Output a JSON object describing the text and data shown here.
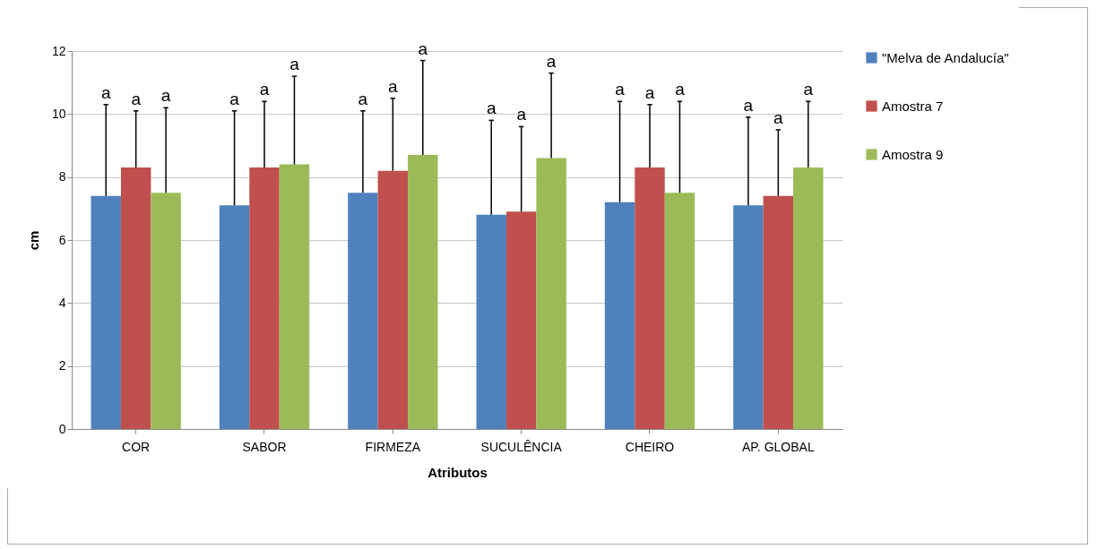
{
  "chart_data": {
    "type": "bar",
    "xlabel": "Atributos",
    "ylabel": "cm",
    "categories": [
      "COR",
      "SABOR",
      "FIRMEZA",
      "SUCULÊNCIA",
      "CHEIRO",
      "AP. GLOBAL"
    ],
    "series": [
      {
        "name": "\"Melva de Andalucía\"",
        "color": "#4f81bd",
        "values": [
          7.4,
          7.1,
          7.5,
          6.8,
          7.2,
          7.1
        ],
        "errors": [
          [
            7.4,
            10.3
          ],
          [
            7.1,
            10.1
          ],
          [
            7.5,
            10.1
          ],
          [
            6.8,
            9.8
          ],
          [
            7.2,
            10.4
          ],
          [
            7.1,
            9.9
          ]
        ]
      },
      {
        "name": "Amostra 7",
        "color": "#c0504d",
        "values": [
          8.3,
          8.3,
          8.2,
          6.9,
          8.3,
          7.4
        ],
        "errors": [
          [
            8.3,
            10.1
          ],
          [
            8.3,
            10.4
          ],
          [
            8.2,
            10.5
          ],
          [
            6.9,
            9.6
          ],
          [
            8.3,
            10.3
          ],
          [
            7.4,
            9.5
          ]
        ]
      },
      {
        "name": "Amostra 9",
        "color": "#9bbb59",
        "values": [
          7.5,
          8.4,
          8.7,
          8.6,
          7.5,
          8.3
        ],
        "errors": [
          [
            7.5,
            10.2
          ],
          [
            8.4,
            11.2
          ],
          [
            8.7,
            11.7
          ],
          [
            8.6,
            11.3
          ],
          [
            7.5,
            10.4
          ],
          [
            8.3,
            10.4
          ]
        ]
      }
    ],
    "annotations": [
      "a",
      "a",
      "a",
      "a",
      "a",
      "a",
      "a",
      "a",
      "a",
      "a",
      "a",
      "a",
      "a",
      "a",
      "a",
      "a",
      "a",
      "a"
    ],
    "ylim": [
      0,
      12
    ],
    "yticks": [
      0,
      2,
      4,
      6,
      8,
      10,
      12
    ],
    "grid": "y",
    "legend": "right"
  }
}
